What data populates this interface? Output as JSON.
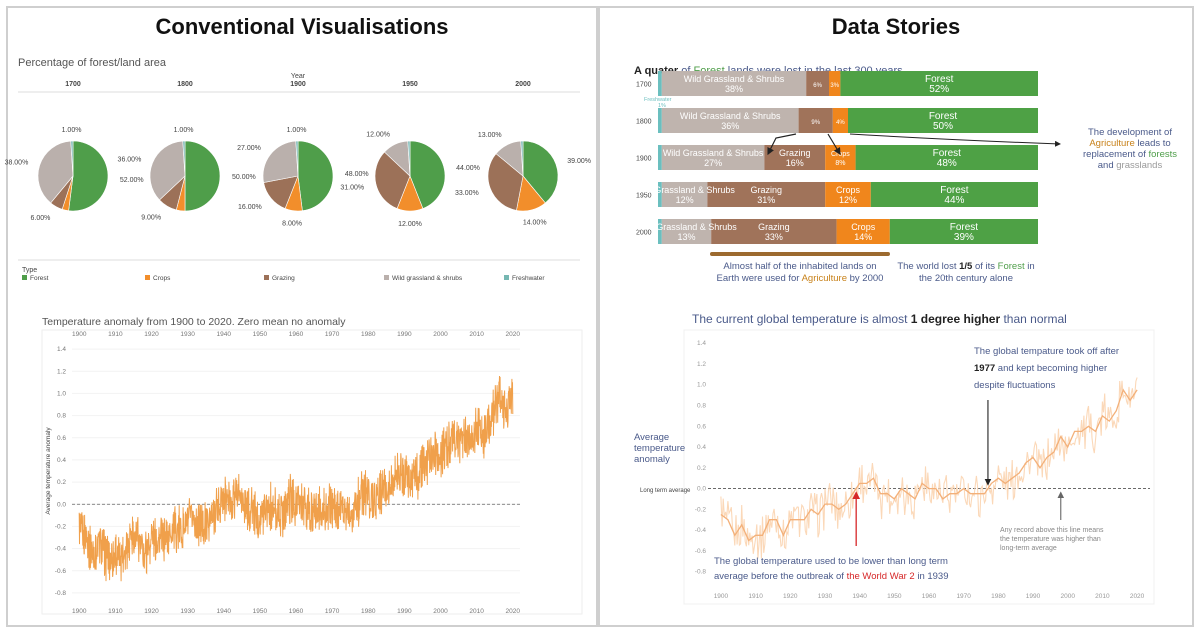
{
  "left_panel": {
    "title": "Conventional Visualisations",
    "pies": {
      "title": "Percentage of forest/land area",
      "year_header": "Year",
      "legend_title": "Type",
      "legend": [
        {
          "label": "Forest",
          "color": "#4f9e4a"
        },
        {
          "label": "Crops",
          "color": "#f28e2b"
        },
        {
          "label": "Grazing",
          "color": "#9c7158"
        },
        {
          "label": "Wild grassland & shrubs",
          "color": "#bab0ac"
        },
        {
          "label": "Freshwater",
          "color": "#76b7b2"
        }
      ]
    },
    "temp": {
      "title": "Temperature anomaly from 1900 to 2020. Zero mean no anomaly",
      "ylabel": "Average temperature anomaly"
    }
  },
  "right_panel": {
    "title": "Data Stories",
    "bars": {
      "headline": [
        {
          "text": "A quater",
          "color": "#222222"
        },
        {
          "text": " of ",
          "color": "#4a5a8a"
        },
        {
          "text": "Forest",
          "color": "#4f9e4a"
        },
        {
          "text": " lands were lost in the last 300 years",
          "color": "#4a5a8a"
        }
      ],
      "freshwater_label": "Freshwater",
      "freshwater_value": "1%",
      "annotation_right": [
        [
          {
            "text": "The development of",
            "color": "#4a5a8a"
          }
        ],
        [
          {
            "text": "Agriculture",
            "color": "#c8821a"
          },
          {
            "text": " leads to",
            "color": "#4a5a8a"
          }
        ],
        [
          {
            "text": "replacement of ",
            "color": "#4a5a8a"
          },
          {
            "text": "forests",
            "color": "#4f9e4a"
          }
        ],
        [
          {
            "text": "and ",
            "color": "#4a5a8a"
          },
          {
            "text": "grasslands",
            "color": "#9a9a9a"
          }
        ]
      ],
      "annotation_bottom_left": [
        [
          {
            "text": "Almost half of the inhabited lands on",
            "color": "#4a5a8a"
          }
        ],
        [
          {
            "text": "Earth were used for ",
            "color": "#4a5a8a"
          },
          {
            "text": "Agriculture",
            "color": "#c8821a"
          },
          {
            "text": " by 2000",
            "color": "#4a5a8a"
          }
        ]
      ],
      "annotation_bottom_right": [
        [
          {
            "text": "The world lost ",
            "color": "#4a5a8a"
          },
          {
            "text": "1/5",
            "color": "#222222"
          },
          {
            "text": " of its ",
            "color": "#4a5a8a"
          },
          {
            "text": "Forest",
            "color": "#4f9e4a"
          },
          {
            "text": " in",
            "color": "#4a5a8a"
          }
        ],
        [
          {
            "text": "the 20th century alone",
            "color": "#4a5a8a"
          }
        ]
      ]
    },
    "temp": {
      "headline": [
        {
          "text": "The current global temperature is almost ",
          "color": "#4a5a8a"
        },
        {
          "text": "1 degree higher",
          "color": "#222222"
        },
        {
          "text": " than normal",
          "color": "#4a5a8a"
        }
      ],
      "ylabel_lines": [
        "Average",
        "temperature",
        "anomaly"
      ],
      "baseline_label": "Long term average",
      "annotation_1977": [
        [
          {
            "text": "The global tempature took off after",
            "color": "#4a5a8a"
          }
        ],
        [
          {
            "text": "1977",
            "color": "#222222"
          },
          {
            "text": " and kept becoming higher",
            "color": "#4a5a8a"
          }
        ],
        [
          {
            "text": "despite fluctuations",
            "color": "#4a5a8a"
          }
        ]
      ],
      "annotation_record": [
        "Any record above this line means",
        "the temperature was higher than",
        "long-term average"
      ],
      "annotation_ww2": [
        [
          {
            "text": "The global temperature used to be lower than long term",
            "color": "#4a5a8a"
          }
        ],
        [
          {
            "text": "average before the outbreak of ",
            "color": "#4a5a8a"
          },
          {
            "text": "the World War 2",
            "color": "#d62728"
          },
          {
            "text": " in 1939",
            "color": "#4a5a8a"
          }
        ]
      ]
    }
  },
  "chart_data": [
    {
      "type": "pie",
      "title": "Percentage of forest/land area",
      "facet_label": "Year",
      "categories": [
        "Forest",
        "Crops",
        "Grazing",
        "Wild grassland & shrubs",
        "Freshwater"
      ],
      "colors": [
        "#4f9e4a",
        "#f28e2b",
        "#9c7158",
        "#bab0ac",
        "#76b7b2"
      ],
      "series": [
        {
          "name": "1700",
          "values": [
            52,
            3,
            6,
            38,
            1
          ],
          "labels": [
            "52.00%",
            "",
            "6.00%",
            "38.00%",
            "1.00%"
          ]
        },
        {
          "name": "1800",
          "values": [
            50,
            4,
            9,
            36,
            1
          ],
          "labels": [
            "50.00%",
            "",
            "9.00%",
            "36.00%",
            "1.00%"
          ]
        },
        {
          "name": "1900",
          "values": [
            48,
            8,
            16,
            27,
            1
          ],
          "labels": [
            "48.00%",
            "8.00%",
            "16.00%",
            "27.00%",
            "1.00%"
          ]
        },
        {
          "name": "1950",
          "values": [
            44,
            12,
            31,
            12,
            1
          ],
          "labels": [
            "44.00%",
            "12.00%",
            "31.00%",
            "12.00%",
            ""
          ]
        },
        {
          "name": "2000",
          "values": [
            39,
            14,
            33,
            13,
            1
          ],
          "labels": [
            "39.00%",
            "14.00%",
            "33.00%",
            "13.00%",
            ""
          ]
        }
      ]
    },
    {
      "type": "line",
      "title": "Temperature anomaly from 1900 to 2020. Zero mean no anomaly",
      "ylabel": "Average temperature anomaly",
      "xlim": [
        1898,
        2022
      ],
      "ylim": [
        -0.9,
        1.5
      ],
      "xticks": [
        1900,
        1910,
        1920,
        1930,
        1940,
        1950,
        1960,
        1970,
        1980,
        1990,
        2000,
        2010,
        2020
      ],
      "yticks": [
        -0.8,
        -0.6,
        -0.4,
        -0.2,
        0.0,
        0.2,
        0.4,
        0.6,
        0.8,
        1.0,
        1.2,
        1.4
      ],
      "reference_line": 0.0,
      "x": [
        1900,
        1902,
        1904,
        1906,
        1908,
        1910,
        1912,
        1914,
        1916,
        1918,
        1920,
        1922,
        1924,
        1926,
        1928,
        1930,
        1932,
        1934,
        1936,
        1938,
        1940,
        1942,
        1944,
        1946,
        1948,
        1950,
        1952,
        1954,
        1956,
        1958,
        1960,
        1962,
        1964,
        1966,
        1968,
        1970,
        1972,
        1974,
        1976,
        1978,
        1980,
        1982,
        1984,
        1986,
        1988,
        1990,
        1992,
        1994,
        1996,
        1998,
        2000,
        2002,
        2004,
        2006,
        2008,
        2010,
        2012,
        2014,
        2016,
        2018,
        2020
      ],
      "values": [
        -0.25,
        -0.3,
        -0.45,
        -0.35,
        -0.5,
        -0.45,
        -0.45,
        -0.3,
        -0.3,
        -0.45,
        -0.3,
        -0.3,
        -0.3,
        -0.2,
        -0.25,
        -0.15,
        -0.15,
        -0.2,
        -0.15,
        -0.05,
        0.05,
        0.05,
        0.1,
        -0.05,
        -0.05,
        -0.1,
        0.0,
        -0.05,
        -0.1,
        0.05,
        0.0,
        0.0,
        -0.1,
        -0.05,
        -0.05,
        0.0,
        -0.05,
        -0.05,
        -0.05,
        0.05,
        0.1,
        0.05,
        0.1,
        0.15,
        0.25,
        0.3,
        0.2,
        0.3,
        0.35,
        0.5,
        0.4,
        0.55,
        0.55,
        0.6,
        0.55,
        0.7,
        0.65,
        0.75,
        0.95,
        0.85,
        0.95
      ]
    },
    {
      "type": "bar",
      "title": "A quater of Forest lands were lost in the last 300 years",
      "stacked": true,
      "orientation": "horizontal",
      "categories": [
        "1700",
        "1800",
        "1900",
        "1950",
        "2000"
      ],
      "series": [
        {
          "name": "Freshwater",
          "values": [
            1,
            1,
            1,
            1,
            1
          ],
          "color": "#6bbfbf"
        },
        {
          "name": "Wild Grassland & Shrubs",
          "values": [
            38,
            36,
            27,
            12,
            13
          ],
          "color": "#bfb4ae"
        },
        {
          "name": "Grazing",
          "values": [
            6,
            9,
            16,
            31,
            33
          ],
          "color": "#a0735a"
        },
        {
          "name": "Crops",
          "values": [
            3,
            4,
            8,
            12,
            14
          ],
          "color": "#f0861c"
        },
        {
          "name": "Forest",
          "values": [
            52,
            50,
            48,
            44,
            39
          ],
          "color": "#4ea145"
        }
      ]
    },
    {
      "type": "line",
      "title": "The current global temperature is almost 1 degree higher than normal",
      "ylabel": "Average temperature anomaly",
      "xlim": [
        1898,
        2022
      ],
      "ylim": [
        -0.9,
        1.45
      ],
      "xticks": [
        1900,
        1910,
        1920,
        1930,
        1940,
        1950,
        1960,
        1970,
        1980,
        1990,
        2000,
        2010,
        2020
      ],
      "yticks": [
        -0.8,
        -0.6,
        -0.4,
        -0.2,
        0.0,
        0.2,
        0.4,
        0.6,
        0.8,
        1.0,
        1.2,
        1.4
      ],
      "reference_line": 0.0,
      "annotations_x": [
        1939,
        1977,
        1998
      ],
      "x": [
        1900,
        1902,
        1904,
        1906,
        1908,
        1910,
        1912,
        1914,
        1916,
        1918,
        1920,
        1922,
        1924,
        1926,
        1928,
        1930,
        1932,
        1934,
        1936,
        1938,
        1940,
        1942,
        1944,
        1946,
        1948,
        1950,
        1952,
        1954,
        1956,
        1958,
        1960,
        1962,
        1964,
        1966,
        1968,
        1970,
        1972,
        1974,
        1976,
        1978,
        1980,
        1982,
        1984,
        1986,
        1988,
        1990,
        1992,
        1994,
        1996,
        1998,
        2000,
        2002,
        2004,
        2006,
        2008,
        2010,
        2012,
        2014,
        2016,
        2018,
        2020
      ],
      "values": [
        -0.25,
        -0.3,
        -0.45,
        -0.35,
        -0.5,
        -0.45,
        -0.45,
        -0.3,
        -0.3,
        -0.45,
        -0.3,
        -0.3,
        -0.3,
        -0.2,
        -0.25,
        -0.15,
        -0.15,
        -0.2,
        -0.15,
        -0.05,
        0.05,
        0.05,
        0.1,
        -0.05,
        -0.05,
        -0.1,
        0.0,
        -0.05,
        -0.1,
        0.05,
        0.0,
        0.0,
        -0.1,
        -0.05,
        -0.05,
        0.0,
        -0.05,
        -0.05,
        -0.05,
        0.05,
        0.1,
        0.05,
        0.1,
        0.15,
        0.25,
        0.3,
        0.2,
        0.3,
        0.35,
        0.5,
        0.4,
        0.55,
        0.55,
        0.6,
        0.55,
        0.7,
        0.65,
        0.75,
        0.95,
        0.85,
        0.95
      ]
    }
  ]
}
